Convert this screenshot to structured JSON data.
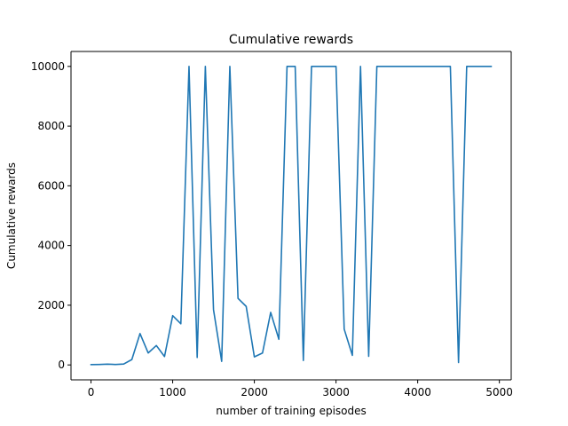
{
  "chart_data": {
    "type": "line",
    "title": "Cumulative rewards",
    "xlabel": "number of training episodes",
    "ylabel": "Cumulative rewards",
    "xlim": [
      -245,
      5145
    ],
    "ylim": [
      -500,
      10500
    ],
    "xticks": [
      0,
      1000,
      2000,
      3000,
      4000,
      5000
    ],
    "yticks": [
      0,
      2000,
      4000,
      6000,
      8000,
      10000
    ],
    "grid": false,
    "color": "#1f77b4",
    "series": [
      {
        "x": [
          0,
          100,
          200,
          300,
          400,
          500,
          600,
          700,
          800,
          900,
          1000,
          1100,
          1200,
          1300,
          1400,
          1500,
          1600,
          1700,
          1800,
          1900,
          2000,
          2100,
          2200,
          2300,
          2400,
          2500,
          2600,
          2700,
          2800,
          2900,
          3000,
          3100,
          3200,
          3300,
          3400,
          3500,
          3600,
          3700,
          3800,
          3900,
          4000,
          4100,
          4200,
          4300,
          4400,
          4500,
          4600,
          4700,
          4800,
          4900
        ],
        "values": [
          10,
          15,
          25,
          15,
          30,
          180,
          1050,
          400,
          650,
          280,
          1650,
          1380,
          10000,
          250,
          10000,
          1850,
          120,
          10000,
          2230,
          1960,
          270,
          400,
          1760,
          860,
          10000,
          10000,
          150,
          10000,
          10000,
          10000,
          10000,
          1200,
          320,
          10000,
          290,
          10000,
          10000,
          10000,
          10000,
          10000,
          10000,
          10000,
          10000,
          10000,
          10000,
          80,
          10000,
          10000,
          10000,
          10000
        ]
      }
    ]
  }
}
